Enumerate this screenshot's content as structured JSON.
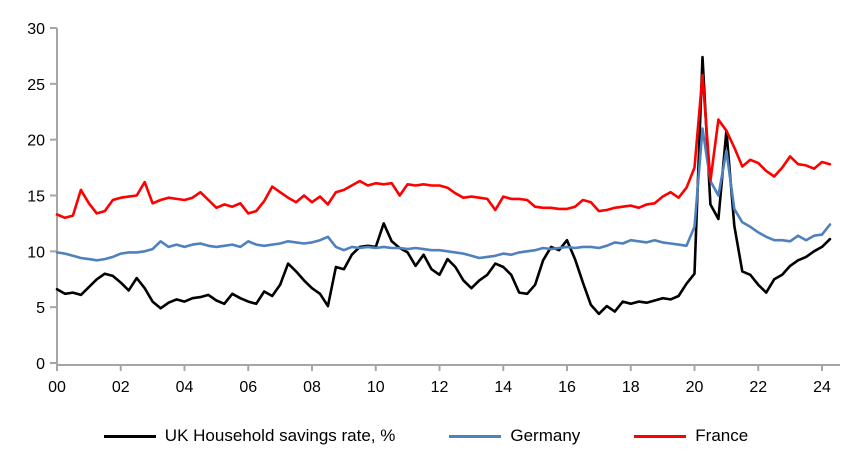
{
  "chart_data": {
    "type": "line",
    "title": "",
    "xlabel": "",
    "ylabel": "",
    "grid": false,
    "legend_position": "bottom",
    "axis_color": "#A6A6A6",
    "tick_label_color": "#000000",
    "background_color": "#FFFFFF",
    "ylim": [
      0,
      30
    ],
    "y_ticks": [
      0,
      5,
      10,
      15,
      20,
      25,
      30
    ],
    "x_start_year": 2000,
    "x_step_years": 0.25,
    "xlim_years": [
      2000,
      2024.6
    ],
    "x_tick_years": [
      2000,
      2002,
      2004,
      2006,
      2008,
      2010,
      2012,
      2014,
      2016,
      2018,
      2020,
      2022,
      2024
    ],
    "x_tick_labels": [
      "00",
      "02",
      "04",
      "06",
      "08",
      "10",
      "12",
      "14",
      "16",
      "18",
      "20",
      "22",
      "24"
    ],
    "series": [
      {
        "name": "UK Household savings rate, %",
        "color": "#000000",
        "values": [
          6.6,
          6.2,
          6.3,
          6.1,
          6.8,
          7.5,
          8.0,
          7.8,
          7.2,
          6.5,
          7.6,
          6.7,
          5.5,
          4.9,
          5.4,
          5.7,
          5.5,
          5.8,
          5.9,
          6.1,
          5.6,
          5.3,
          6.2,
          5.8,
          5.5,
          5.3,
          6.4,
          6.0,
          7.0,
          8.9,
          8.2,
          7.4,
          6.7,
          6.2,
          5.1,
          8.6,
          8.4,
          9.7,
          10.4,
          10.5,
          10.4,
          12.5,
          10.9,
          10.3,
          9.9,
          8.7,
          9.7,
          8.4,
          7.9,
          9.3,
          8.6,
          7.4,
          6.7,
          7.4,
          7.9,
          8.9,
          8.6,
          7.9,
          6.3,
          6.2,
          7.0,
          9.2,
          10.4,
          10.1,
          11.0,
          9.3,
          7.2,
          5.2,
          4.4,
          5.1,
          4.6,
          5.5,
          5.3,
          5.5,
          5.4,
          5.6,
          5.8,
          5.7,
          6.0,
          7.1,
          8.0,
          27.4,
          14.2,
          12.9,
          20.8,
          12.3,
          8.2,
          7.9,
          7.0,
          6.3,
          7.5,
          7.9,
          8.7,
          9.2,
          9.5,
          10.0,
          10.4,
          11.1
        ]
      },
      {
        "name": "Germany",
        "color": "#4E81BD",
        "values": [
          9.9,
          9.8,
          9.6,
          9.4,
          9.3,
          9.2,
          9.3,
          9.5,
          9.8,
          9.9,
          9.9,
          10.0,
          10.2,
          10.9,
          10.4,
          10.6,
          10.4,
          10.6,
          10.7,
          10.5,
          10.4,
          10.5,
          10.6,
          10.4,
          10.9,
          10.6,
          10.5,
          10.6,
          10.7,
          10.9,
          10.8,
          10.7,
          10.8,
          11.0,
          11.3,
          10.4,
          10.1,
          10.4,
          10.3,
          10.4,
          10.3,
          10.4,
          10.3,
          10.3,
          10.2,
          10.3,
          10.2,
          10.1,
          10.1,
          10.0,
          9.9,
          9.8,
          9.6,
          9.4,
          9.5,
          9.6,
          9.8,
          9.7,
          9.9,
          10.0,
          10.1,
          10.3,
          10.2,
          10.3,
          10.4,
          10.3,
          10.4,
          10.4,
          10.3,
          10.5,
          10.8,
          10.7,
          11.0,
          10.9,
          10.8,
          11.0,
          10.8,
          10.7,
          10.6,
          10.5,
          12.2,
          21.0,
          16.3,
          15.0,
          19.0,
          13.8,
          12.6,
          12.2,
          11.7,
          11.3,
          11.0,
          11.0,
          10.9,
          11.4,
          11.0,
          11.4,
          11.5,
          12.4
        ]
      },
      {
        "name": "France",
        "color": "#FF0000",
        "values": [
          13.3,
          13.0,
          13.2,
          15.5,
          14.3,
          13.4,
          13.6,
          14.6,
          14.8,
          14.9,
          15.0,
          16.2,
          14.3,
          14.6,
          14.8,
          14.7,
          14.6,
          14.8,
          15.3,
          14.6,
          13.9,
          14.2,
          14.0,
          14.3,
          13.4,
          13.6,
          14.5,
          15.8,
          15.3,
          14.8,
          14.4,
          15.0,
          14.4,
          14.9,
          14.2,
          15.3,
          15.5,
          15.9,
          16.3,
          15.9,
          16.1,
          16.0,
          16.1,
          15.0,
          16.0,
          15.9,
          16.0,
          15.9,
          15.9,
          15.7,
          15.2,
          14.8,
          14.9,
          14.8,
          14.7,
          13.7,
          14.9,
          14.7,
          14.7,
          14.6,
          14.0,
          13.9,
          13.9,
          13.8,
          13.8,
          14.0,
          14.6,
          14.4,
          13.6,
          13.7,
          13.9,
          14.0,
          14.1,
          13.9,
          14.2,
          14.3,
          14.9,
          15.3,
          14.8,
          15.7,
          17.5,
          25.8,
          16.3,
          21.8,
          20.8,
          19.3,
          17.6,
          18.2,
          17.9,
          17.2,
          16.7,
          17.5,
          18.5,
          17.8,
          17.7,
          17.4,
          18.0,
          17.8
        ]
      }
    ]
  },
  "legend": {
    "items": [
      {
        "label": "UK Household savings rate, %"
      },
      {
        "label": "Germany"
      },
      {
        "label": "France"
      }
    ]
  }
}
